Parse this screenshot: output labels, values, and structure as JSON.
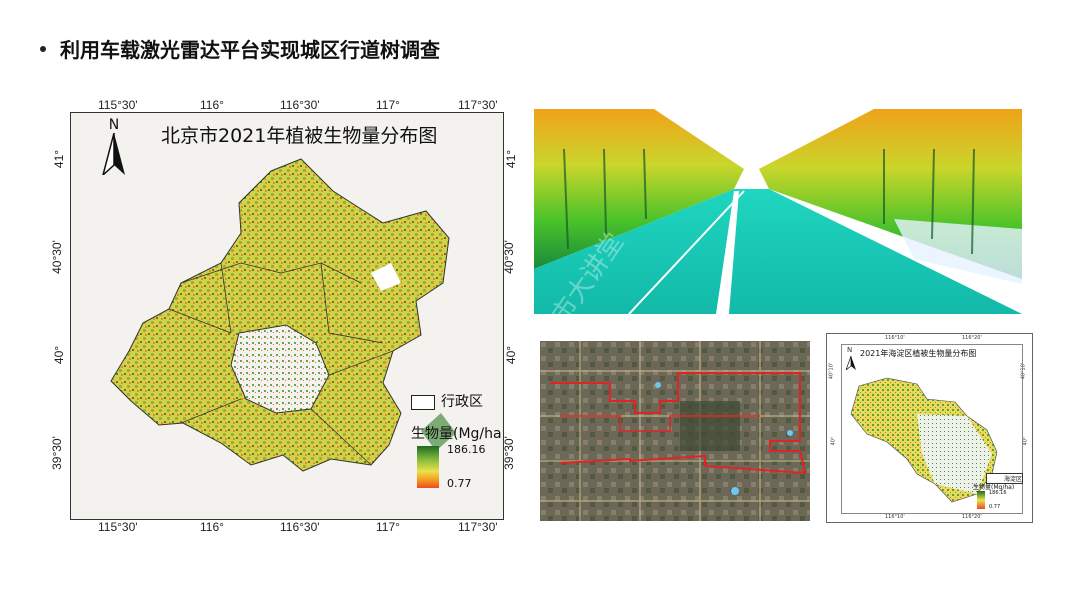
{
  "slide": {
    "title": "利用车载激光雷达平台实现城区行道树调查"
  },
  "beijing_map": {
    "title": "北京市2021年植被生物量分布图",
    "north_label": "N",
    "lon_ticks": [
      "115°30'",
      "116°",
      "116°30'",
      "117°",
      "117°30'"
    ],
    "lat_ticks": [
      "41°",
      "40°30'",
      "40°",
      "39°30'"
    ],
    "legend_boundary_label": "行政区",
    "legend_title": "生物量(Mg/ha)",
    "legend_max": "186.16",
    "legend_min": "0.77"
  },
  "lidar_image": {
    "watermark": "市大讲堂"
  },
  "haidian_map": {
    "title": "2021年海淀区植被生物量分布图",
    "north_label": "N",
    "lon_ticks": [
      "116°10'",
      "116°20'"
    ],
    "lat_ticks": [
      "40°10'",
      "40°"
    ],
    "legend_boundary_label": "海淀区",
    "legend_title": "生物量(Mg/ha)",
    "legend_max": "186.16",
    "legend_min": "0.77"
  },
  "colors": {
    "biomass_high": "#1d6b1f",
    "biomass_mid": "#e8e24a",
    "biomass_low": "#f04a1d",
    "route": "#e02424",
    "lidar_road": "#1fd6c0"
  }
}
